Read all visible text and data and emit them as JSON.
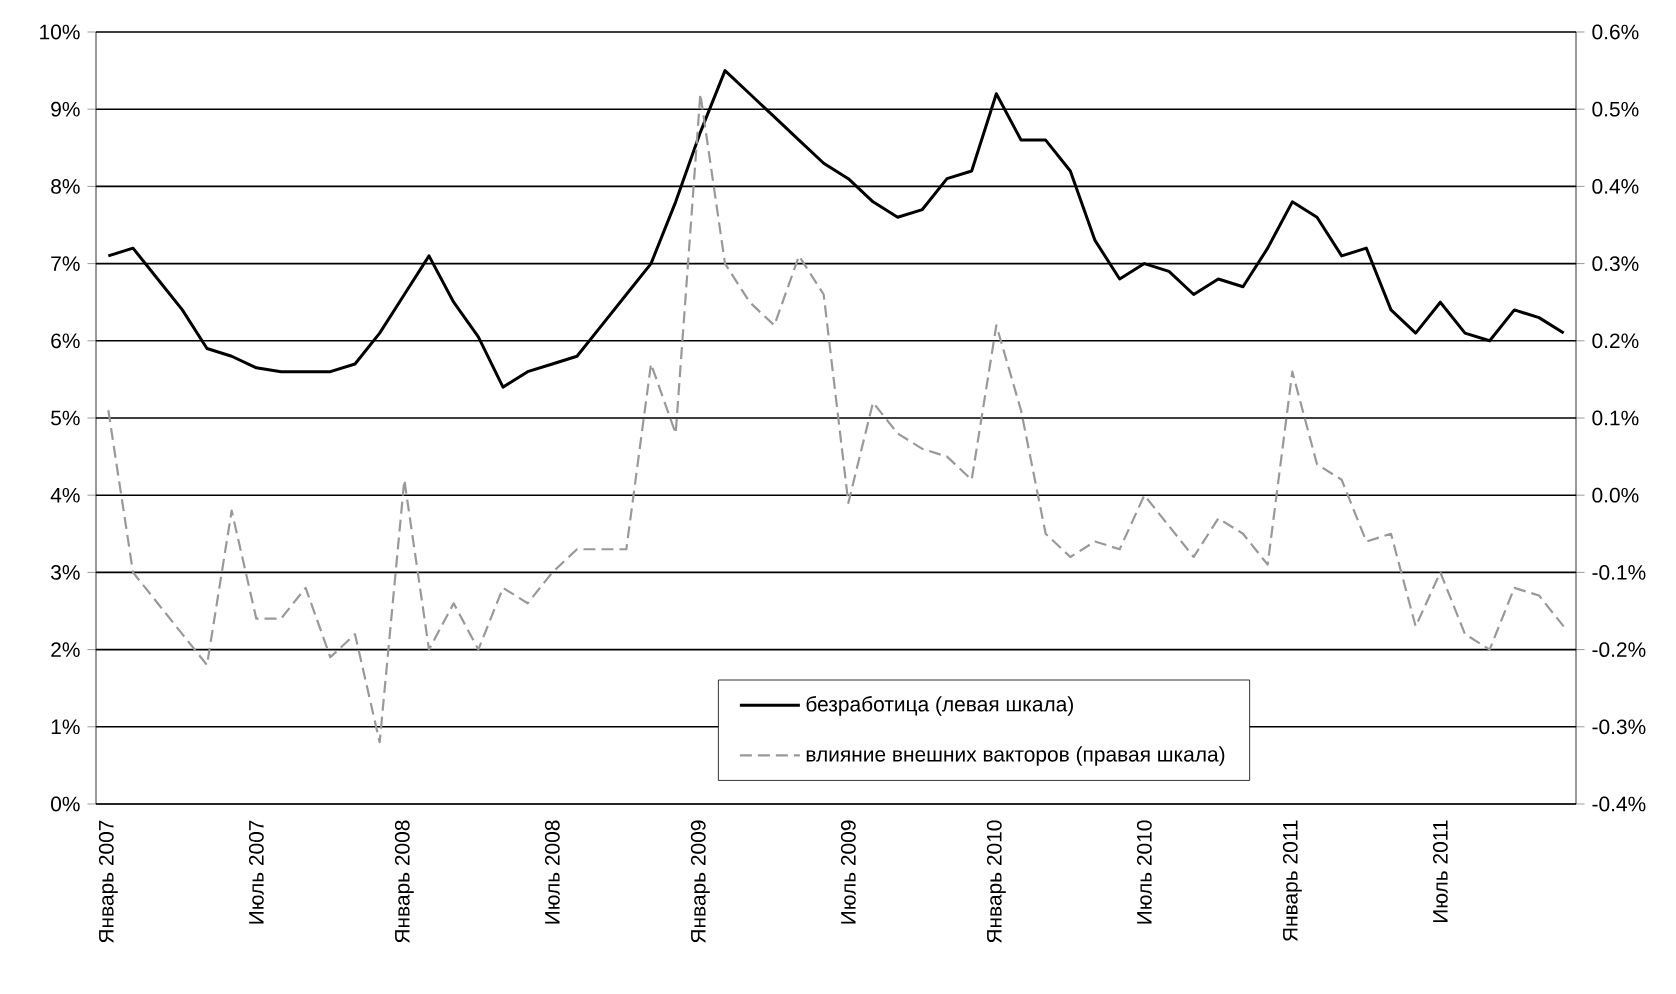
{
  "chart_data": {
    "type": "line",
    "categories": [
      "Январь 2007",
      null,
      null,
      null,
      null,
      null,
      "Июль 2007",
      null,
      null,
      null,
      null,
      null,
      "Январь 2008",
      null,
      null,
      null,
      null,
      null,
      "Июль 2008",
      null,
      null,
      null,
      null,
      null,
      "Январь 2009",
      null,
      null,
      null,
      null,
      null,
      "Июль 2009",
      null,
      null,
      null,
      null,
      null,
      "Январь 2010",
      null,
      null,
      null,
      null,
      null,
      "Июль 2010",
      null,
      null,
      null,
      null,
      null,
      "Январь 2011",
      null,
      null,
      null,
      null,
      null,
      "Июль 2011",
      null,
      null,
      null,
      null,
      null
    ],
    "series": [
      {
        "name": "безработица (левая шкала)",
        "color": "#000000",
        "line_style": "solid",
        "values": [
          7.1,
          7.2,
          6.8,
          6.4,
          5.9,
          5.8,
          5.65,
          5.6,
          5.6,
          5.6,
          5.7,
          6.1,
          6.6,
          7.1,
          6.5,
          6.05,
          5.4,
          5.6,
          5.7,
          5.8,
          6.2,
          6.6,
          7.0,
          7.8,
          8.7,
          9.5,
          9.2,
          8.9,
          8.6,
          8.3,
          8.1,
          7.8,
          7.6,
          7.7,
          8.1,
          8.2,
          9.2,
          8.6,
          8.6,
          8.2,
          7.3,
          6.8,
          7.0,
          6.9,
          6.6,
          6.8,
          6.7,
          7.2,
          7.8,
          7.6,
          7.1,
          7.2,
          6.4,
          6.1,
          6.5,
          6.1,
          6.0,
          6.4,
          6.3,
          6.1
        ]
      },
      {
        "name": "влияние внешних вакторов (правая шкала)",
        "color": "#999999",
        "line_style": "dashed",
        "axis": "y2",
        "values": [
          0.11,
          -0.1,
          -0.14,
          -0.18,
          -0.22,
          -0.02,
          -0.16,
          -0.16,
          -0.12,
          -0.21,
          -0.18,
          -0.32,
          0.02,
          -0.2,
          -0.14,
          -0.2,
          -0.12,
          -0.14,
          -0.1,
          -0.07,
          -0.07,
          -0.07,
          0.17,
          0.08,
          0.52,
          0.3,
          0.25,
          0.22,
          0.31,
          0.26,
          -0.01,
          0.12,
          0.08,
          0.06,
          0.05,
          0.02,
          0.22,
          0.11,
          -0.05,
          -0.08,
          -0.06,
          -0.07,
          0.0,
          -0.04,
          -0.08,
          -0.03,
          -0.05,
          -0.09,
          0.16,
          0.04,
          0.02,
          -0.06,
          -0.05,
          -0.17,
          -0.1,
          -0.18,
          -0.2,
          -0.12,
          -0.13,
          -0.17
        ]
      }
    ],
    "ylim": [
      0,
      10
    ],
    "yticks": [
      {
        "value": 0,
        "label": "0%"
      },
      {
        "value": 1,
        "label": "1%"
      },
      {
        "value": 2,
        "label": "2%"
      },
      {
        "value": 3,
        "label": "3%"
      },
      {
        "value": 4,
        "label": "4%"
      },
      {
        "value": 5,
        "label": "5%"
      },
      {
        "value": 6,
        "label": "6%"
      },
      {
        "value": 7,
        "label": "7%"
      },
      {
        "value": 8,
        "label": "8%"
      },
      {
        "value": 9,
        "label": "9%"
      },
      {
        "value": 10,
        "label": "10%"
      }
    ],
    "y2lim": [
      -0.4,
      0.6
    ],
    "y2ticks": [
      {
        "value": -0.4,
        "label": "-0.4%"
      },
      {
        "value": -0.3,
        "label": "-0.3%"
      },
      {
        "value": -0.2,
        "label": "-0.2%"
      },
      {
        "value": -0.1,
        "label": "-0.1%"
      },
      {
        "value": 0.0,
        "label": "0.0%"
      },
      {
        "value": 0.1,
        "label": "0.1%"
      },
      {
        "value": 0.2,
        "label": "0.2%"
      },
      {
        "value": 0.3,
        "label": "0.3%"
      },
      {
        "value": 0.4,
        "label": "0.4%"
      },
      {
        "value": 0.5,
        "label": "0.5%"
      },
      {
        "value": 0.6,
        "label": "0.6%"
      }
    ],
    "grid": "y",
    "legend": "bottom"
  }
}
